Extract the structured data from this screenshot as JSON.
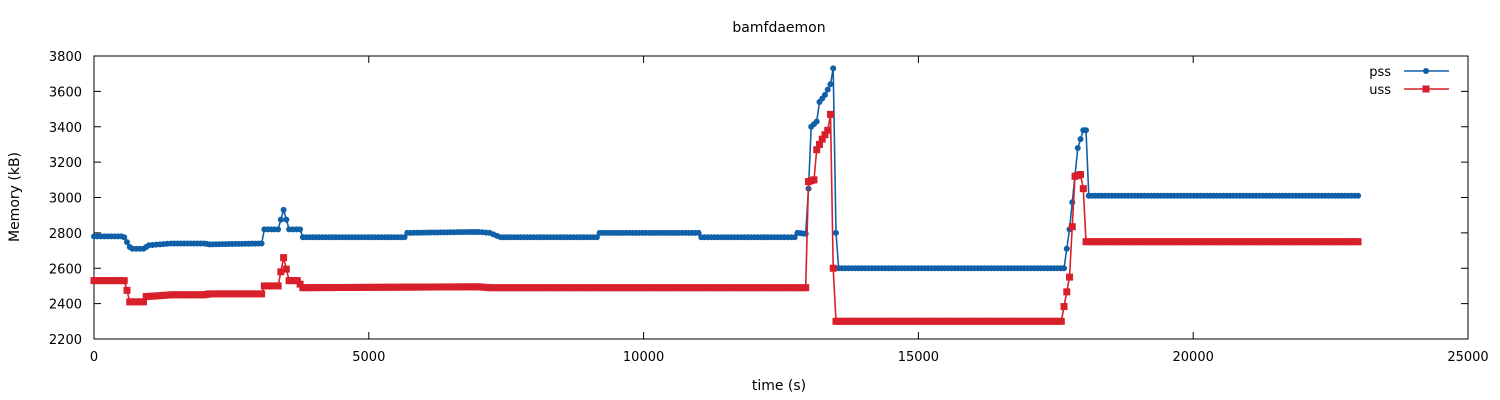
{
  "chart_data": {
    "type": "line",
    "title": "bamfdaemon",
    "xlabel": "time (s)",
    "ylabel": "Memory (kB)",
    "xlim": [
      0,
      25000
    ],
    "ylim": [
      2200,
      3800
    ],
    "xticks": [
      0,
      5000,
      10000,
      15000,
      20000,
      25000
    ],
    "yticks": [
      2200,
      2400,
      2600,
      2800,
      3000,
      3200,
      3400,
      3600,
      3800
    ],
    "grid": false,
    "legend": "top-right",
    "series": [
      {
        "name": "pss",
        "color": "#1060a8",
        "marker": "circle",
        "points": [
          [
            0,
            2780
          ],
          [
            500,
            2780
          ],
          [
            550,
            2775
          ],
          [
            650,
            2720
          ],
          [
            700,
            2710
          ],
          [
            900,
            2710
          ],
          [
            1000,
            2730
          ],
          [
            1200,
            2735
          ],
          [
            1400,
            2740
          ],
          [
            2000,
            2740
          ],
          [
            2100,
            2735
          ],
          [
            3050,
            2740
          ],
          [
            3100,
            2820
          ],
          [
            3350,
            2820
          ],
          [
            3450,
            2930
          ],
          [
            3550,
            2820
          ],
          [
            3750,
            2820
          ],
          [
            3800,
            2775
          ],
          [
            5650,
            2775
          ],
          [
            5700,
            2800
          ],
          [
            6850,
            2805
          ],
          [
            7000,
            2805
          ],
          [
            7200,
            2800
          ],
          [
            7400,
            2775
          ],
          [
            9150,
            2775
          ],
          [
            9200,
            2800
          ],
          [
            11000,
            2800
          ],
          [
            11050,
            2775
          ],
          [
            12500,
            2775
          ],
          [
            12750,
            2775
          ],
          [
            12800,
            2800
          ],
          [
            12950,
            2795
          ],
          [
            13000,
            3050
          ],
          [
            13050,
            3400
          ],
          [
            13150,
            3430
          ],
          [
            13200,
            3540
          ],
          [
            13300,
            3580
          ],
          [
            13400,
            3640
          ],
          [
            13450,
            3730
          ],
          [
            13500,
            2800
          ],
          [
            13550,
            2600
          ],
          [
            17650,
            2600
          ],
          [
            17750,
            2820
          ],
          [
            17900,
            3280
          ],
          [
            18000,
            3380
          ],
          [
            18050,
            3380
          ],
          [
            18100,
            3010
          ],
          [
            23000,
            3010
          ]
        ]
      },
      {
        "name": "uss",
        "color": "#d8202a",
        "marker": "square",
        "points": [
          [
            0,
            2530
          ],
          [
            550,
            2530
          ],
          [
            600,
            2475
          ],
          [
            650,
            2410
          ],
          [
            900,
            2410
          ],
          [
            950,
            2440
          ],
          [
            1200,
            2445
          ],
          [
            1400,
            2450
          ],
          [
            2000,
            2450
          ],
          [
            2100,
            2455
          ],
          [
            3050,
            2455
          ],
          [
            3100,
            2500
          ],
          [
            3350,
            2500
          ],
          [
            3450,
            2660
          ],
          [
            3550,
            2530
          ],
          [
            3700,
            2530
          ],
          [
            3800,
            2490
          ],
          [
            6850,
            2495
          ],
          [
            7000,
            2495
          ],
          [
            7200,
            2490
          ],
          [
            12950,
            2490
          ],
          [
            13000,
            3090
          ],
          [
            13100,
            3100
          ],
          [
            13150,
            3270
          ],
          [
            13250,
            3330
          ],
          [
            13350,
            3380
          ],
          [
            13400,
            3470
          ],
          [
            13450,
            2600
          ],
          [
            13500,
            2300
          ],
          [
            17600,
            2300
          ],
          [
            17750,
            2550
          ],
          [
            17850,
            3120
          ],
          [
            17950,
            3130
          ],
          [
            18000,
            3050
          ],
          [
            18050,
            2750
          ],
          [
            23000,
            2750
          ]
        ]
      }
    ]
  }
}
